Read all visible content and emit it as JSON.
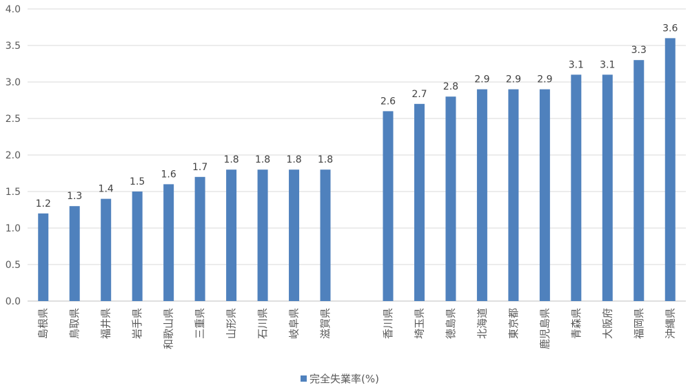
{
  "chart_data": {
    "type": "bar",
    "ylim": [
      0,
      4.0
    ],
    "yticks": [
      "0.0",
      "0.5",
      "1.0",
      "1.5",
      "2.0",
      "2.5",
      "3.0",
      "3.5",
      "4.0"
    ],
    "grid": true,
    "legend_position": "bottom",
    "categories": [
      "島根県",
      "鳥取県",
      "福井県",
      "岩手県",
      "和歌山県",
      "三重県",
      "山形県",
      "石川県",
      "岐阜県",
      "滋賀県",
      "",
      "香川県",
      "埼玉県",
      "徳島県",
      "北海道",
      "東京都",
      "鹿児島県",
      "青森県",
      "大阪府",
      "福岡県",
      "沖縄県"
    ],
    "series": [
      {
        "name": "完全失業率(%)",
        "color": "#4F81BD",
        "values": [
          1.2,
          1.3,
          1.4,
          1.5,
          1.6,
          1.7,
          1.8,
          1.8,
          1.8,
          1.8,
          null,
          2.6,
          2.7,
          2.8,
          2.9,
          2.9,
          2.9,
          3.1,
          3.1,
          3.3,
          3.6
        ],
        "labels": [
          "1.2",
          "1.3",
          "1.4",
          "1.5",
          "1.6",
          "1.7",
          "1.8",
          "1.8",
          "1.8",
          "1.8",
          "",
          "2.6",
          "2.7",
          "2.8",
          "2.9",
          "2.9",
          "2.9",
          "3.1",
          "3.1",
          "3.3",
          "3.6"
        ]
      }
    ]
  },
  "legend": {
    "label": "完全失業率(%)"
  }
}
